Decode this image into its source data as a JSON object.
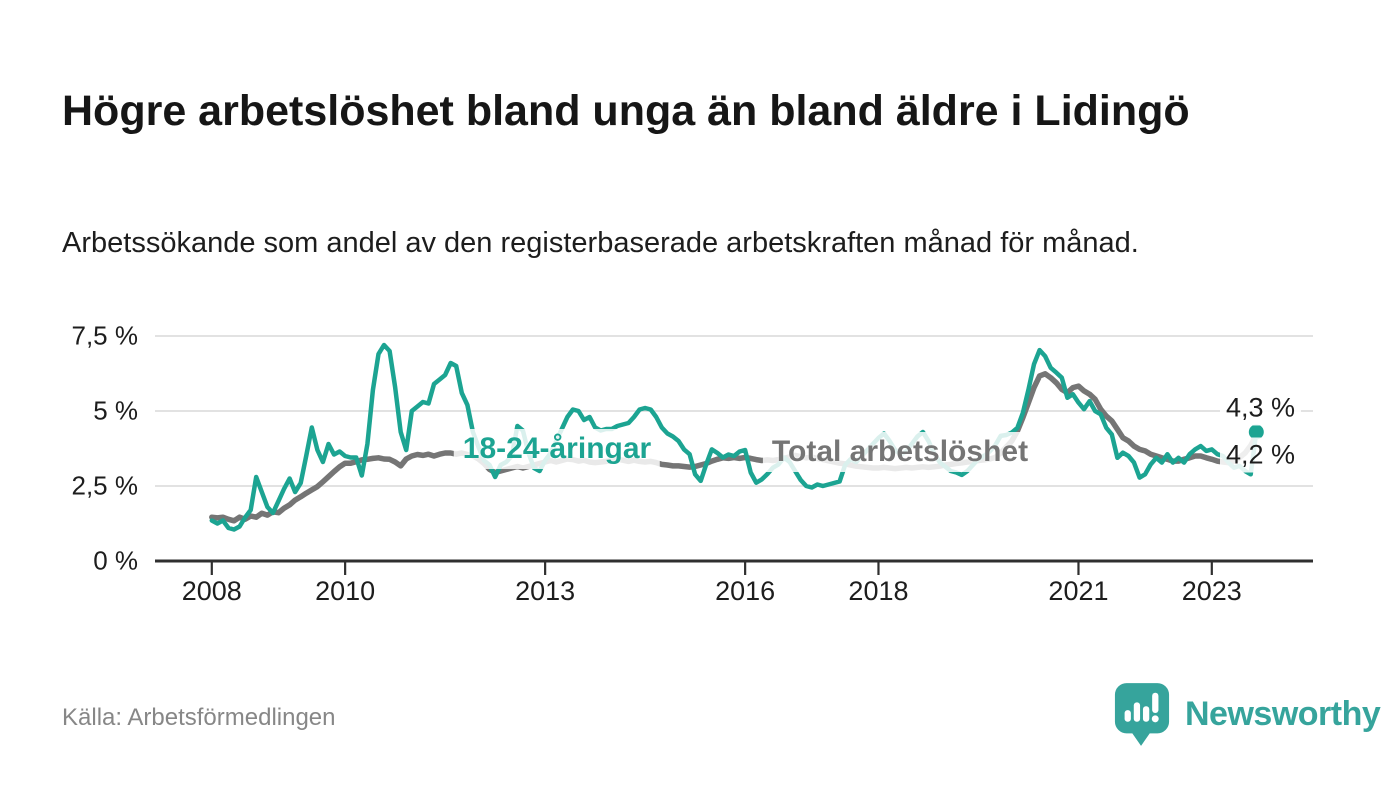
{
  "header": {
    "title": "Högre arbetslöshet bland unga än bland äldre i Lidingö",
    "subtitle": "Arbetssökande som andel av den registerbaserade arbetskraften månad för månad."
  },
  "footer": {
    "source_label": "Källa: Arbetsförmedlingen",
    "logo_text": "Newsworthy"
  },
  "colors": {
    "youth_line": "#1ca492",
    "total_line": "#757575",
    "axis": "#2f2f2f",
    "gridline": "#d8d8d8",
    "logo_teal": "#36a49c"
  },
  "chart_data": {
    "type": "line",
    "title": "Högre arbetslöshet bland unga än bland äldre i Lidingö",
    "xlabel": "",
    "ylabel": "",
    "unit": "%",
    "frequency": "monthly",
    "x_start": "2008-01",
    "x_end": "2023-09",
    "ylim": [
      0,
      8.3
    ],
    "grid": "horizontal",
    "legend_position": "inline-annotations",
    "y_ticks": [
      {
        "value": 0,
        "label": "0 %"
      },
      {
        "value": 2.5,
        "label": "2,5 %"
      },
      {
        "value": 5,
        "label": "5 %"
      },
      {
        "value": 7.5,
        "label": "7,5 %"
      }
    ],
    "x_ticks": [
      {
        "year": 2008,
        "label": "2008"
      },
      {
        "year": 2010,
        "label": "2010"
      },
      {
        "year": 2013,
        "label": "2013"
      },
      {
        "year": 2016,
        "label": "2016"
      },
      {
        "year": 2018,
        "label": "2018"
      },
      {
        "year": 2021,
        "label": "2021"
      },
      {
        "year": 2023,
        "label": "2023"
      }
    ],
    "series": [
      {
        "id": "youth",
        "name": "18-24-åringar",
        "color": "#1ca492",
        "end_label": "4,3 %",
        "end_value": 4.3,
        "end_marker": true,
        "values": [
          1.35,
          1.25,
          1.35,
          1.1,
          1.05,
          1.15,
          1.45,
          1.7,
          2.8,
          2.3,
          1.8,
          1.6,
          2.0,
          2.4,
          2.75,
          2.3,
          2.6,
          3.5,
          4.45,
          3.7,
          3.3,
          3.9,
          3.55,
          3.65,
          3.5,
          3.45,
          3.45,
          2.85,
          3.9,
          5.7,
          6.9,
          7.2,
          7.0,
          5.8,
          4.3,
          3.7,
          5.0,
          5.15,
          5.3,
          5.25,
          5.9,
          6.05,
          6.2,
          6.6,
          6.5,
          5.6,
          5.2,
          4.3,
          3.8,
          3.35,
          3.2,
          2.8,
          3.2,
          3.3,
          3.5,
          4.5,
          4.35,
          3.6,
          3.1,
          3.0,
          3.35,
          3.6,
          4.0,
          4.4,
          4.8,
          5.05,
          5.0,
          4.7,
          4.8,
          4.45,
          4.35,
          4.4,
          4.4,
          4.5,
          4.55,
          4.6,
          4.8,
          5.05,
          5.1,
          5.05,
          4.8,
          4.45,
          4.25,
          4.15,
          4.0,
          3.72,
          3.56,
          2.89,
          2.67,
          3.22,
          3.72,
          3.6,
          3.45,
          3.55,
          3.5,
          3.65,
          3.7,
          2.95,
          2.61,
          2.72,
          2.9,
          3.11,
          3.22,
          3.45,
          3.3,
          3.0,
          2.7,
          2.5,
          2.45,
          2.55,
          2.5,
          2.55,
          2.6,
          2.65,
          3.2,
          3.4,
          3.3,
          3.5,
          3.7,
          3.9,
          4.1,
          4.25,
          4.0,
          3.7,
          3.55,
          3.65,
          3.9,
          4.15,
          4.3,
          4.0,
          3.6,
          3.3,
          3.15,
          3.0,
          2.95,
          2.87,
          3.0,
          3.2,
          3.4,
          3.5,
          3.65,
          3.85,
          4.17,
          4.2,
          4.28,
          4.44,
          4.94,
          5.72,
          6.56,
          7.03,
          6.83,
          6.44,
          6.28,
          6.11,
          5.44,
          5.56,
          5.28,
          5.06,
          5.33,
          5.0,
          4.89,
          4.44,
          4.22,
          3.44,
          3.61,
          3.5,
          3.28,
          2.78,
          2.89,
          3.22,
          3.44,
          3.28,
          3.56,
          3.28,
          3.44,
          3.28,
          3.56,
          3.72,
          3.83,
          3.67,
          3.72,
          3.56,
          3.5,
          3.28,
          3.11,
          3.17,
          3.0,
          2.89,
          4.3
        ]
      },
      {
        "id": "total",
        "name": "Total arbetslöshet",
        "color": "#757575",
        "end_label": "4,2 %",
        "end_value": 4.2,
        "end_marker": false,
        "values": [
          1.46,
          1.44,
          1.46,
          1.39,
          1.34,
          1.46,
          1.39,
          1.5,
          1.46,
          1.59,
          1.53,
          1.64,
          1.61,
          1.76,
          1.87,
          2.03,
          2.14,
          2.26,
          2.37,
          2.48,
          2.64,
          2.81,
          2.98,
          3.14,
          3.26,
          3.26,
          3.31,
          3.37,
          3.39,
          3.42,
          3.44,
          3.4,
          3.39,
          3.3,
          3.17,
          3.4,
          3.5,
          3.55,
          3.52,
          3.56,
          3.5,
          3.56,
          3.6,
          3.6,
          3.56,
          3.6,
          3.55,
          3.5,
          3.4,
          3.25,
          3.05,
          2.95,
          3.0,
          3.05,
          3.1,
          3.15,
          3.1,
          3.15,
          3.2,
          3.25,
          3.3,
          3.35,
          3.3,
          3.35,
          3.4,
          3.38,
          3.33,
          3.36,
          3.3,
          3.28,
          3.3,
          3.32,
          3.35,
          3.39,
          3.36,
          3.32,
          3.36,
          3.32,
          3.3,
          3.32,
          3.28,
          3.22,
          3.2,
          3.17,
          3.17,
          3.15,
          3.13,
          3.15,
          3.2,
          3.25,
          3.33,
          3.39,
          3.44,
          3.42,
          3.45,
          3.42,
          3.45,
          3.42,
          3.38,
          3.35,
          3.37,
          3.35,
          3.38,
          3.42,
          3.47,
          3.52,
          3.48,
          3.44,
          3.46,
          3.42,
          3.38,
          3.34,
          3.3,
          3.26,
          3.24,
          3.2,
          3.16,
          3.14,
          3.12,
          3.1,
          3.1,
          3.12,
          3.1,
          3.08,
          3.1,
          3.12,
          3.1,
          3.12,
          3.14,
          3.12,
          3.14,
          3.16,
          3.2,
          3.22,
          3.25,
          3.27,
          3.3,
          3.32,
          3.35,
          3.37,
          3.4,
          3.45,
          3.6,
          3.8,
          4.0,
          4.33,
          4.78,
          5.28,
          5.78,
          6.17,
          6.24,
          6.11,
          5.94,
          5.72,
          5.61,
          5.78,
          5.83,
          5.67,
          5.56,
          5.39,
          5.06,
          4.83,
          4.67,
          4.39,
          4.11,
          4.0,
          3.83,
          3.72,
          3.67,
          3.56,
          3.5,
          3.44,
          3.39,
          3.33,
          3.33,
          3.39,
          3.44,
          3.5,
          3.5,
          3.44,
          3.39,
          3.33,
          3.3,
          3.28,
          3.33,
          3.45,
          3.6,
          3.85,
          4.2
        ]
      }
    ]
  }
}
